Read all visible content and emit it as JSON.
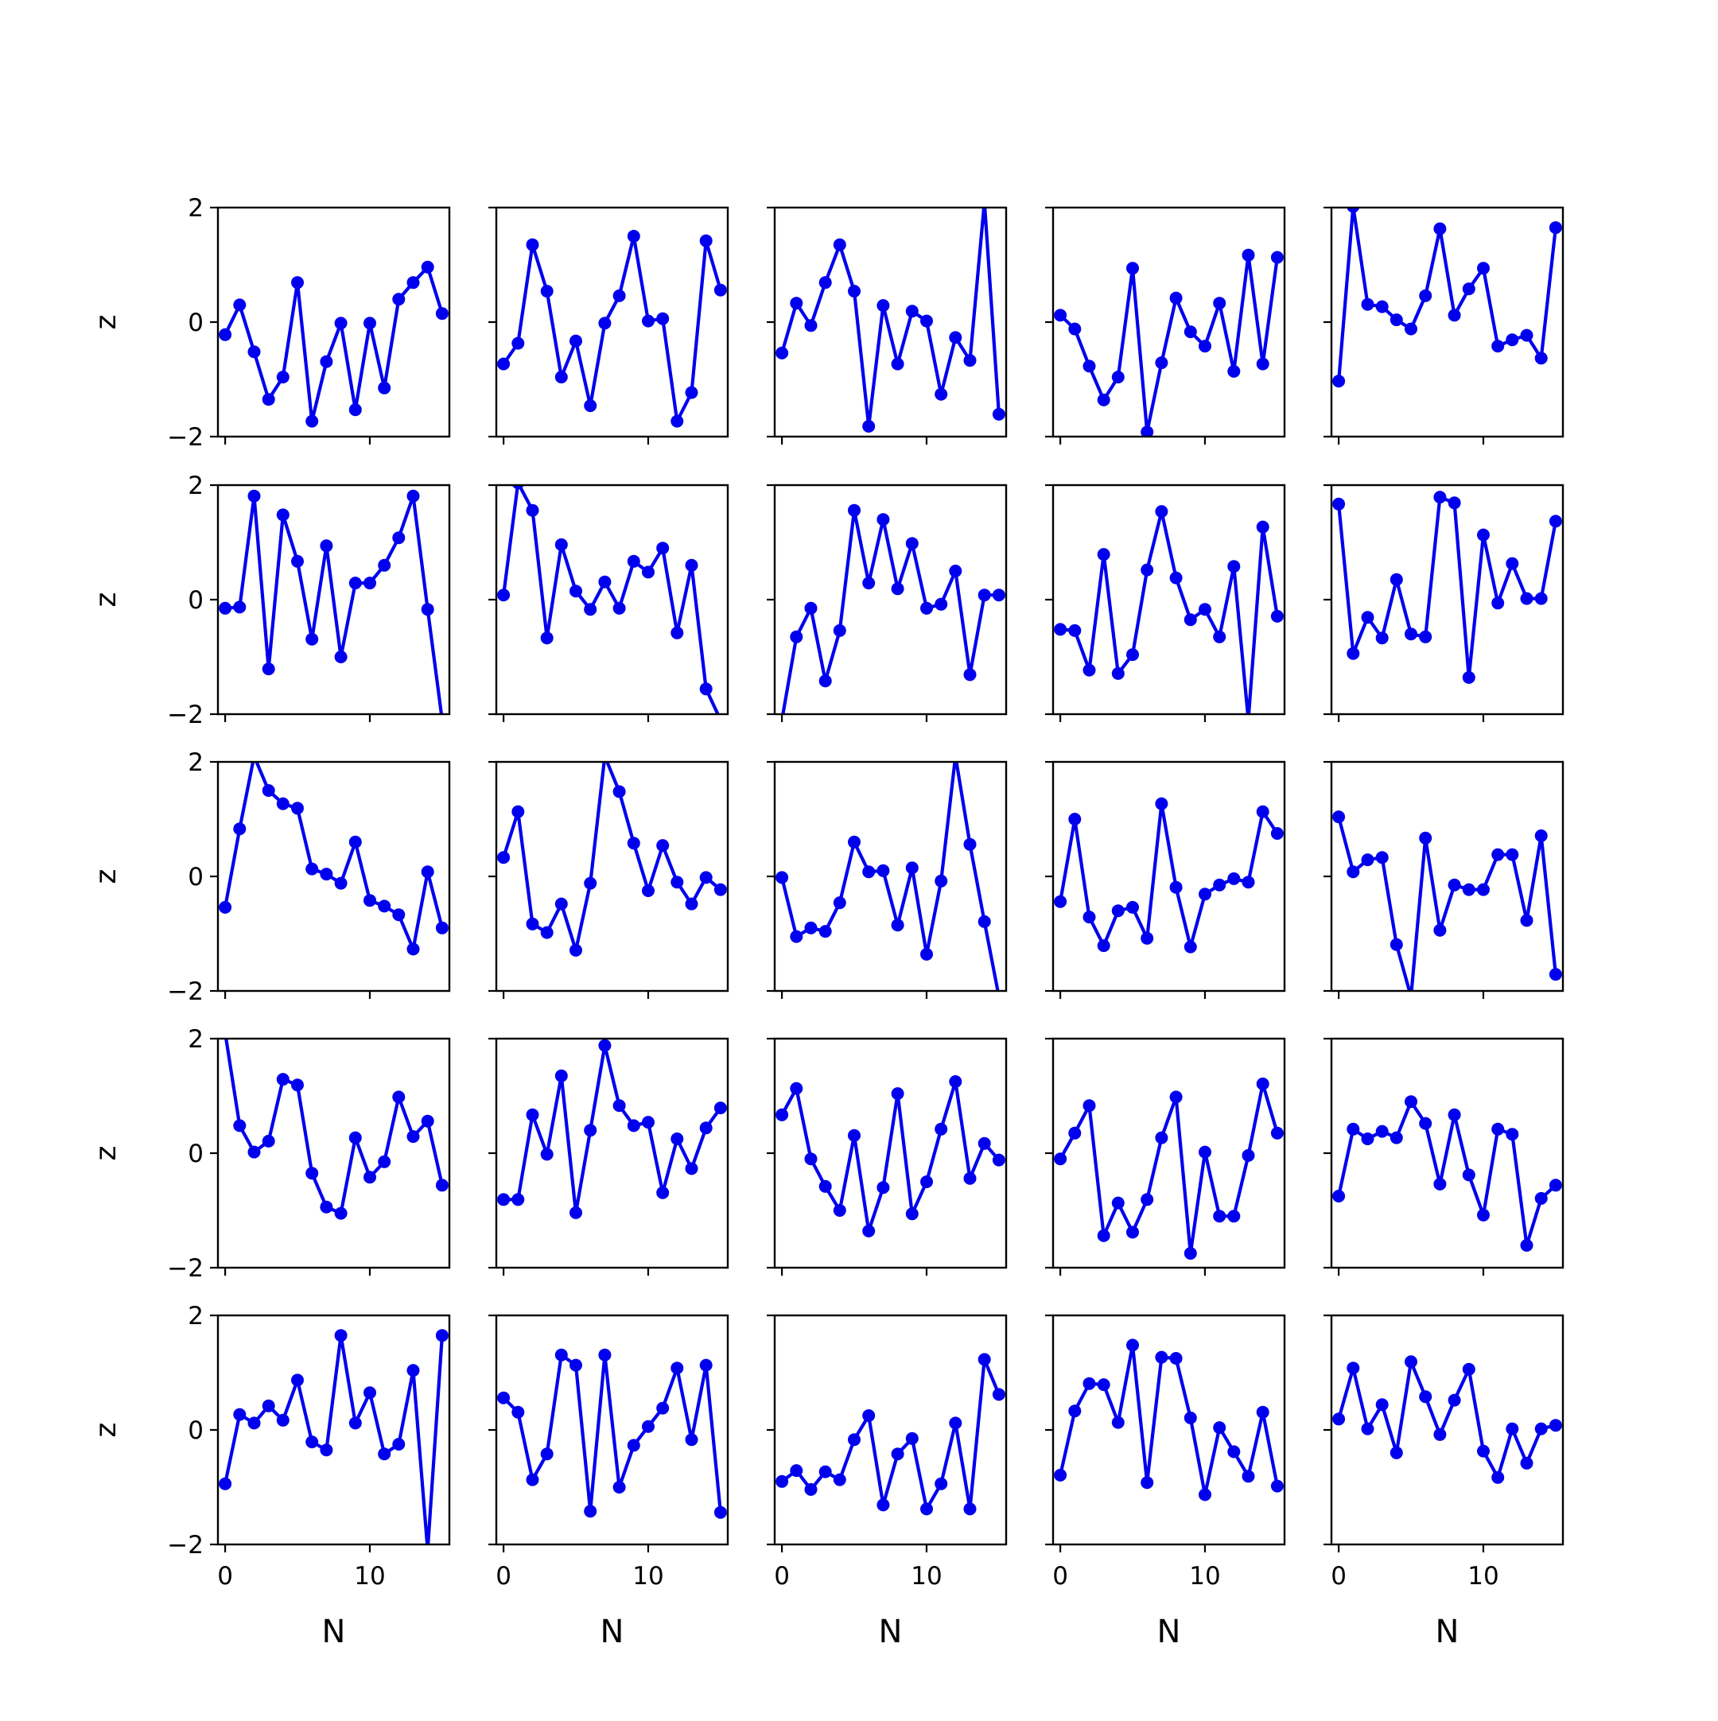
{
  "chart_data": {
    "type": "line",
    "layout": "5x5 grid of small multiples, shared x and y axes",
    "x": [
      0,
      1,
      2,
      3,
      4,
      5,
      6,
      7,
      8,
      9,
      10,
      11,
      12,
      13,
      14,
      15
    ],
    "xlabel": "N",
    "ylabel": "z",
    "xlim": [
      -0.5,
      15.5
    ],
    "ylim": [
      -2,
      2
    ],
    "xticks": [
      0,
      10
    ],
    "yticks": [
      -2,
      0,
      2
    ],
    "ytick_labels": [
      "−2",
      "0",
      "2"
    ],
    "xtick_labels": [
      "0",
      "10"
    ],
    "grid": false,
    "line_color": "#0000ee",
    "marker": "circle",
    "panels": [
      {
        "row": 0,
        "col": 0,
        "values": [
          -0.22,
          0.3,
          -0.52,
          -1.35,
          -0.96,
          0.69,
          -1.73,
          -0.69,
          -0.02,
          -1.53,
          -0.02,
          -1.15,
          0.4,
          0.69,
          0.96,
          0.15
        ]
      },
      {
        "row": 0,
        "col": 1,
        "values": [
          -0.73,
          -0.37,
          1.35,
          0.54,
          -0.96,
          -0.33,
          -1.46,
          -0.02,
          0.46,
          1.5,
          0.02,
          0.06,
          -1.73,
          -1.23,
          1.42,
          0.56
        ]
      },
      {
        "row": 0,
        "col": 2,
        "values": [
          -0.54,
          0.33,
          -0.06,
          0.69,
          1.35,
          0.54,
          -1.82,
          0.29,
          -0.73,
          0.19,
          0.02,
          -1.26,
          -0.27,
          -0.67,
          2.1,
          -1.61
        ]
      },
      {
        "row": 0,
        "col": 3,
        "values": [
          0.12,
          -0.12,
          -0.77,
          -1.36,
          -0.96,
          0.94,
          -1.92,
          -0.71,
          0.42,
          -0.17,
          -0.42,
          0.33,
          -0.86,
          1.17,
          -0.73,
          1.13
        ]
      },
      {
        "row": 0,
        "col": 4,
        "values": [
          -1.03,
          2.02,
          0.31,
          0.27,
          0.04,
          -0.12,
          0.46,
          1.63,
          0.12,
          0.58,
          0.94,
          -0.42,
          -0.31,
          -0.23,
          -0.63,
          1.65
        ]
      },
      {
        "row": 1,
        "col": 0,
        "values": [
          -0.15,
          -0.13,
          1.81,
          -1.21,
          1.48,
          0.67,
          -0.69,
          0.94,
          -1.0,
          0.29,
          0.29,
          0.6,
          1.08,
          1.81,
          -0.17,
          -2.1
        ]
      },
      {
        "row": 1,
        "col": 1,
        "values": [
          0.08,
          2.04,
          1.56,
          -0.67,
          0.96,
          0.15,
          -0.17,
          0.31,
          -0.15,
          0.67,
          0.48,
          0.9,
          -0.58,
          0.6,
          -1.56,
          -2.1
        ]
      },
      {
        "row": 1,
        "col": 2,
        "values": [
          -2.1,
          -0.65,
          -0.15,
          -1.42,
          -0.54,
          1.56,
          0.29,
          1.4,
          0.19,
          0.98,
          -0.15,
          -0.08,
          0.5,
          -1.31,
          0.08,
          0.08
        ]
      },
      {
        "row": 1,
        "col": 3,
        "values": [
          -0.52,
          -0.54,
          -1.23,
          0.79,
          -1.29,
          -0.96,
          0.52,
          1.54,
          0.38,
          -0.35,
          -0.17,
          -0.65,
          0.58,
          -2.1,
          1.27,
          -0.29
        ]
      },
      {
        "row": 1,
        "col": 4,
        "values": [
          1.67,
          -0.94,
          -0.31,
          -0.67,
          0.35,
          -0.6,
          -0.65,
          1.79,
          1.69,
          -1.36,
          1.13,
          -0.06,
          0.63,
          0.02,
          0.02,
          1.37
        ]
      },
      {
        "row": 2,
        "col": 0,
        "values": [
          -0.54,
          0.83,
          2.1,
          1.5,
          1.27,
          1.19,
          0.13,
          0.04,
          -0.12,
          0.6,
          -0.42,
          -0.52,
          -0.67,
          -1.27,
          0.08,
          -0.9
        ]
      },
      {
        "row": 2,
        "col": 1,
        "values": [
          0.33,
          1.13,
          -0.83,
          -0.98,
          -0.48,
          -1.29,
          -0.12,
          2.1,
          1.48,
          0.58,
          -0.25,
          0.54,
          -0.1,
          -0.48,
          -0.02,
          -0.23
        ]
      },
      {
        "row": 2,
        "col": 2,
        "values": [
          -0.02,
          -1.05,
          -0.9,
          -0.96,
          -0.46,
          0.6,
          0.08,
          0.1,
          -0.85,
          0.15,
          -1.36,
          -0.08,
          2.1,
          0.56,
          -0.79,
          -2.1
        ]
      },
      {
        "row": 2,
        "col": 3,
        "values": [
          -0.44,
          1.0,
          -0.71,
          -1.21,
          -0.6,
          -0.54,
          -1.08,
          1.27,
          -0.19,
          -1.23,
          -0.31,
          -0.15,
          -0.04,
          -0.1,
          1.13,
          0.75
        ]
      },
      {
        "row": 2,
        "col": 4,
        "values": [
          1.04,
          0.08,
          0.29,
          0.33,
          -1.19,
          -2.1,
          0.67,
          -0.94,
          -0.15,
          -0.23,
          -0.23,
          0.38,
          0.38,
          -0.77,
          0.71,
          -1.71
        ]
      },
      {
        "row": 3,
        "col": 0,
        "values": [
          2.1,
          0.48,
          0.02,
          0.21,
          1.29,
          1.19,
          -0.35,
          -0.94,
          -1.05,
          0.27,
          -0.42,
          -0.15,
          0.98,
          0.29,
          0.56,
          -0.56
        ]
      },
      {
        "row": 3,
        "col": 1,
        "values": [
          -0.81,
          -0.81,
          0.67,
          -0.02,
          1.35,
          -1.04,
          0.4,
          1.88,
          0.83,
          0.48,
          0.54,
          -0.69,
          0.25,
          -0.27,
          0.44,
          0.79
        ]
      },
      {
        "row": 3,
        "col": 2,
        "values": [
          0.67,
          1.13,
          -0.1,
          -0.58,
          -1.0,
          0.31,
          -1.36,
          -0.6,
          1.04,
          -1.06,
          -0.5,
          0.42,
          1.25,
          -0.44,
          0.17,
          -0.12
        ]
      },
      {
        "row": 3,
        "col": 3,
        "values": [
          -0.1,
          0.35,
          0.83,
          -1.44,
          -0.87,
          -1.38,
          -0.81,
          0.27,
          0.98,
          -1.75,
          0.02,
          -1.1,
          -1.1,
          -0.04,
          1.21,
          0.35
        ]
      },
      {
        "row": 3,
        "col": 4,
        "values": [
          -0.75,
          0.42,
          0.25,
          0.38,
          0.27,
          0.9,
          0.52,
          -0.54,
          0.67,
          -0.38,
          -1.08,
          0.42,
          0.33,
          -1.61,
          -0.79,
          -0.56
        ]
      },
      {
        "row": 4,
        "col": 0,
        "values": [
          -0.94,
          0.27,
          0.12,
          0.42,
          0.17,
          0.87,
          -0.21,
          -0.35,
          1.65,
          0.12,
          0.65,
          -0.42,
          -0.25,
          1.04,
          -2.1,
          1.65
        ]
      },
      {
        "row": 4,
        "col": 1,
        "values": [
          0.56,
          0.31,
          -0.87,
          -0.42,
          1.31,
          1.13,
          -1.42,
          1.31,
          -1.0,
          -0.27,
          0.06,
          0.38,
          1.08,
          -0.17,
          1.13,
          -1.44
        ]
      },
      {
        "row": 4,
        "col": 2,
        "values": [
          -0.9,
          -0.71,
          -1.04,
          -0.73,
          -0.87,
          -0.17,
          0.25,
          -1.31,
          -0.42,
          -0.15,
          -1.38,
          -0.94,
          0.12,
          -1.38,
          1.23,
          0.62
        ]
      },
      {
        "row": 4,
        "col": 3,
        "values": [
          -0.79,
          0.33,
          0.81,
          0.79,
          0.13,
          1.48,
          -0.92,
          1.27,
          1.25,
          0.21,
          -1.13,
          0.04,
          -0.38,
          -0.81,
          0.31,
          -0.98
        ]
      },
      {
        "row": 4,
        "col": 4,
        "values": [
          0.19,
          1.08,
          0.02,
          0.44,
          -0.4,
          1.19,
          0.58,
          -0.08,
          0.52,
          1.06,
          -0.37,
          -0.83,
          0.02,
          -0.58,
          0.02,
          0.08
        ]
      }
    ]
  }
}
